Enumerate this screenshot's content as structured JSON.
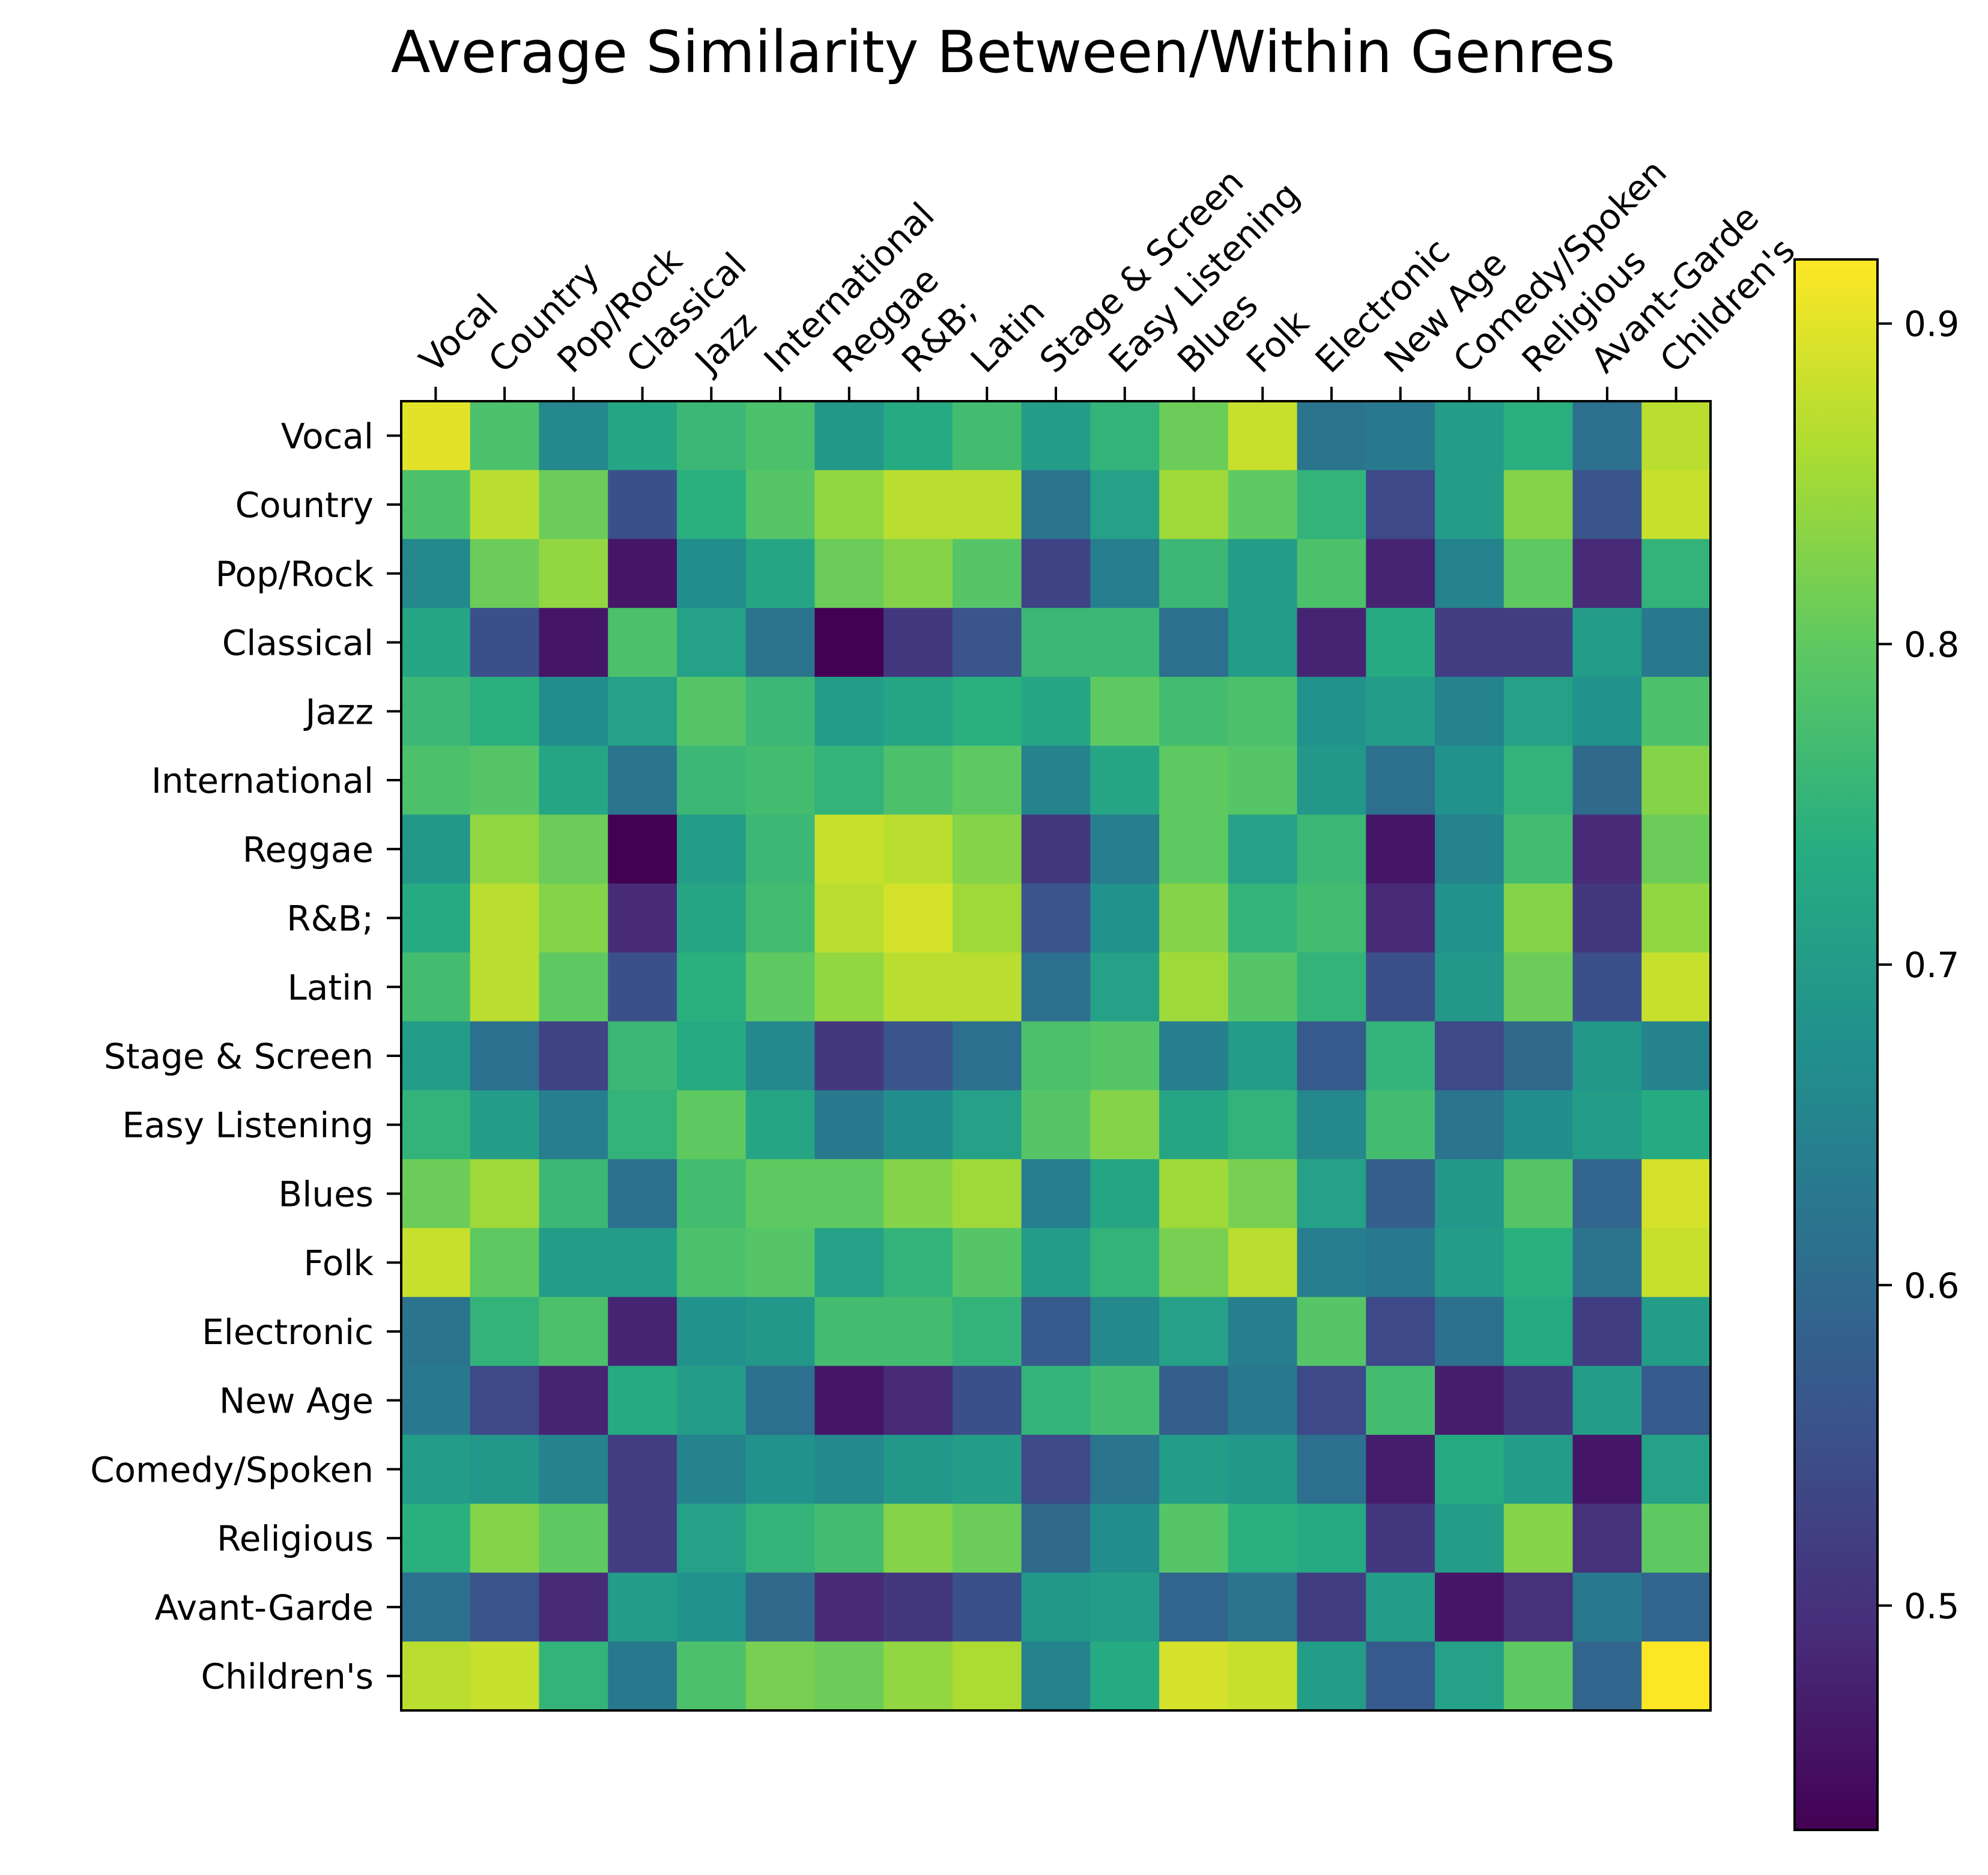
{
  "chart_data": {
    "type": "heatmap",
    "title": "Average Similarity Between/Within Genres",
    "x_categories": [
      "Vocal",
      "Country",
      "Pop/Rock",
      "Classical",
      "Jazz",
      "International",
      "Reggae",
      "R&B;",
      "Latin",
      "Stage & Screen",
      "Easy Listening",
      "Blues",
      "Folk",
      "Electronic",
      "New Age",
      "Comedy/Spoken",
      "Religious",
      "Avant-Garde",
      "Children's"
    ],
    "y_categories": [
      "Vocal",
      "Country",
      "Pop/Rock",
      "Classical",
      "Jazz",
      "International",
      "Reggae",
      "R&B;",
      "Latin",
      "Stage & Screen",
      "Easy Listening",
      "Blues",
      "Folk",
      "Electronic",
      "New Age",
      "Comedy/Spoken",
      "Religious",
      "Avant-Garde",
      "Children's"
    ],
    "values": [
      [
        0.9,
        0.78,
        0.66,
        0.72,
        0.76,
        0.78,
        0.69,
        0.73,
        0.77,
        0.7,
        0.75,
        0.81,
        0.88,
        0.62,
        0.63,
        0.7,
        0.74,
        0.61,
        0.87
      ],
      [
        0.78,
        0.87,
        0.81,
        0.55,
        0.74,
        0.79,
        0.84,
        0.87,
        0.87,
        0.62,
        0.71,
        0.85,
        0.8,
        0.75,
        0.54,
        0.7,
        0.83,
        0.56,
        0.88
      ],
      [
        0.66,
        0.81,
        0.84,
        0.46,
        0.67,
        0.72,
        0.81,
        0.83,
        0.79,
        0.53,
        0.64,
        0.76,
        0.7,
        0.78,
        0.48,
        0.65,
        0.8,
        0.49,
        0.75
      ],
      [
        0.72,
        0.55,
        0.46,
        0.78,
        0.71,
        0.62,
        0.43,
        0.51,
        0.56,
        0.76,
        0.76,
        0.61,
        0.7,
        0.48,
        0.73,
        0.52,
        0.52,
        0.7,
        0.63
      ],
      [
        0.76,
        0.74,
        0.67,
        0.71,
        0.79,
        0.76,
        0.7,
        0.72,
        0.74,
        0.72,
        0.8,
        0.77,
        0.78,
        0.68,
        0.7,
        0.65,
        0.71,
        0.68,
        0.78
      ],
      [
        0.78,
        0.79,
        0.72,
        0.62,
        0.76,
        0.77,
        0.75,
        0.78,
        0.8,
        0.65,
        0.72,
        0.8,
        0.79,
        0.69,
        0.61,
        0.68,
        0.75,
        0.6,
        0.83
      ],
      [
        0.69,
        0.84,
        0.81,
        0.43,
        0.7,
        0.76,
        0.88,
        0.87,
        0.83,
        0.51,
        0.64,
        0.8,
        0.71,
        0.76,
        0.46,
        0.65,
        0.77,
        0.49,
        0.81
      ],
      [
        0.73,
        0.87,
        0.83,
        0.49,
        0.72,
        0.77,
        0.87,
        0.89,
        0.85,
        0.56,
        0.68,
        0.83,
        0.75,
        0.77,
        0.49,
        0.68,
        0.83,
        0.51,
        0.84
      ],
      [
        0.77,
        0.87,
        0.8,
        0.55,
        0.74,
        0.8,
        0.84,
        0.87,
        0.87,
        0.61,
        0.71,
        0.85,
        0.79,
        0.75,
        0.55,
        0.69,
        0.81,
        0.55,
        0.88
      ],
      [
        0.7,
        0.61,
        0.53,
        0.76,
        0.73,
        0.66,
        0.51,
        0.56,
        0.61,
        0.78,
        0.79,
        0.64,
        0.7,
        0.57,
        0.75,
        0.54,
        0.6,
        0.69,
        0.65
      ],
      [
        0.75,
        0.7,
        0.64,
        0.75,
        0.8,
        0.72,
        0.63,
        0.67,
        0.71,
        0.79,
        0.83,
        0.72,
        0.75,
        0.66,
        0.77,
        0.62,
        0.67,
        0.7,
        0.73
      ],
      [
        0.81,
        0.85,
        0.76,
        0.61,
        0.77,
        0.8,
        0.8,
        0.83,
        0.85,
        0.64,
        0.72,
        0.85,
        0.82,
        0.71,
        0.58,
        0.69,
        0.79,
        0.59,
        0.89
      ],
      [
        0.88,
        0.8,
        0.7,
        0.7,
        0.78,
        0.79,
        0.71,
        0.75,
        0.79,
        0.7,
        0.75,
        0.82,
        0.87,
        0.64,
        0.63,
        0.7,
        0.74,
        0.62,
        0.88
      ],
      [
        0.62,
        0.75,
        0.78,
        0.48,
        0.68,
        0.69,
        0.77,
        0.77,
        0.75,
        0.57,
        0.66,
        0.71,
        0.64,
        0.79,
        0.54,
        0.61,
        0.73,
        0.52,
        0.7
      ],
      [
        0.63,
        0.54,
        0.48,
        0.73,
        0.7,
        0.61,
        0.46,
        0.49,
        0.55,
        0.75,
        0.77,
        0.58,
        0.63,
        0.54,
        0.77,
        0.47,
        0.51,
        0.7,
        0.57
      ],
      [
        0.7,
        0.69,
        0.65,
        0.52,
        0.65,
        0.68,
        0.66,
        0.69,
        0.7,
        0.54,
        0.62,
        0.7,
        0.69,
        0.61,
        0.47,
        0.73,
        0.7,
        0.46,
        0.71
      ],
      [
        0.74,
        0.83,
        0.8,
        0.52,
        0.71,
        0.75,
        0.77,
        0.83,
        0.81,
        0.6,
        0.67,
        0.79,
        0.74,
        0.73,
        0.51,
        0.7,
        0.83,
        0.5,
        0.8
      ],
      [
        0.61,
        0.56,
        0.49,
        0.7,
        0.68,
        0.6,
        0.49,
        0.51,
        0.55,
        0.69,
        0.7,
        0.59,
        0.62,
        0.52,
        0.7,
        0.46,
        0.5,
        0.63,
        0.59
      ],
      [
        0.87,
        0.88,
        0.75,
        0.63,
        0.78,
        0.82,
        0.81,
        0.84,
        0.86,
        0.65,
        0.73,
        0.89,
        0.88,
        0.7,
        0.57,
        0.71,
        0.8,
        0.59,
        0.92
      ]
    ],
    "colorbar": {
      "colormap": "viridis",
      "vmin": 0.43,
      "vmax": 0.92,
      "ticks": [
        0.5,
        0.6,
        0.7,
        0.8,
        0.9
      ],
      "tick_labels": [
        "0.5",
        "0.6",
        "0.7",
        "0.8",
        "0.9"
      ]
    },
    "grid": false
  }
}
